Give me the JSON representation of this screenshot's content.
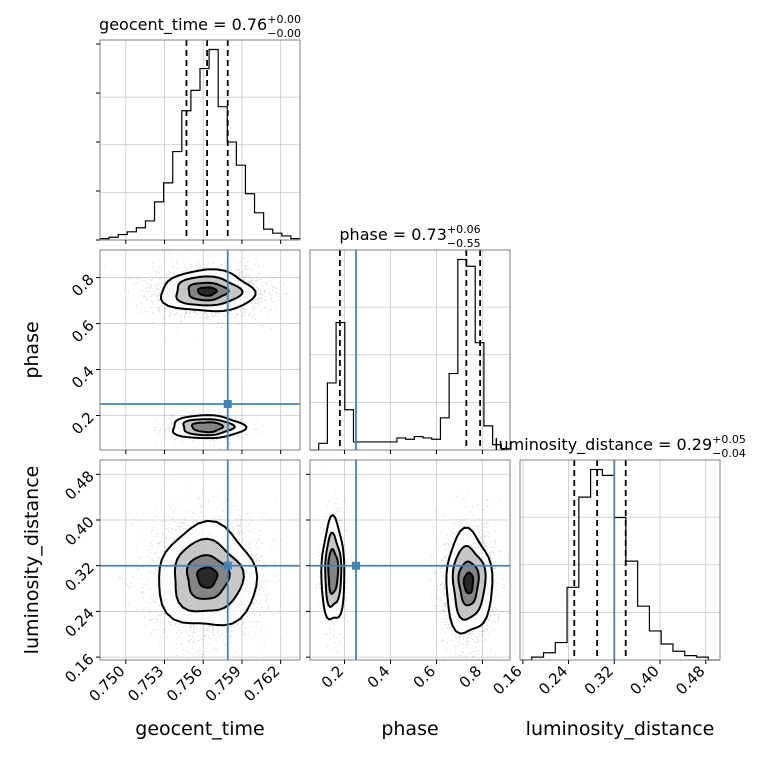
{
  "chart_data": {
    "type": "corner",
    "truth_color": "#4682b4",
    "params": [
      {
        "name": "geocent_time",
        "axis_label": "geocent_time",
        "range": [
          0.748,
          0.7635
        ],
        "ticks": [
          0.75,
          0.753,
          0.756,
          0.759,
          0.762
        ],
        "tick_labels": [
          "0.750",
          "0.753",
          "0.756",
          "0.759",
          "0.762"
        ],
        "title_main": "geocent_time = 0.76",
        "title_sup": "+0.00",
        "title_sub": "−0.00",
        "quantiles": [
          0.7547,
          0.7563,
          0.7579
        ],
        "truth": null,
        "hist": [
          1,
          2,
          4,
          6,
          9,
          14,
          28,
          42,
          65,
          95,
          110,
          126,
          140,
          98,
          72,
          55,
          34,
          20,
          8,
          5,
          3,
          1
        ]
      },
      {
        "name": "phase",
        "axis_label": "phase",
        "range": [
          0.05,
          0.92
        ],
        "ticks": [
          0.2,
          0.4,
          0.6,
          0.8
        ],
        "tick_labels": [
          "0.2",
          "0.4",
          "0.6",
          "0.8"
        ],
        "title_main": "phase = 0.73",
        "title_sup": "+0.06",
        "title_sub": "−0.55",
        "quantiles": [
          0.18,
          0.73,
          0.79
        ],
        "truth": 0.25,
        "hist": [
          0,
          5,
          50,
          95,
          30,
          6,
          6,
          6,
          6,
          6,
          9,
          8,
          10,
          9,
          8,
          24,
          57,
          142,
          137,
          80,
          18,
          4,
          1
        ]
      },
      {
        "name": "luminosity_distance",
        "axis_label": "luminosity_distance",
        "range": [
          0.155,
          0.505
        ],
        "ticks": [
          0.16,
          0.24,
          0.32,
          0.4,
          0.48
        ],
        "tick_labels": [
          "0.16",
          "0.24",
          "0.32",
          "0.40",
          "0.48"
        ],
        "title_main": "luminosity_distance = 0.29",
        "title_sup": "+0.05",
        "title_sub": "−0.04",
        "quantiles": [
          0.25,
          0.29,
          0.34
        ],
        "truth": 0.32,
        "hist": [
          0,
          2,
          5,
          12,
          50,
          112,
          131,
          127,
          98,
          68,
          37,
          20,
          11,
          6,
          3,
          2,
          0
        ]
      }
    ],
    "panels_2d": [
      {
        "x_param": "geocent_time",
        "y_param": "phase",
        "modes": [
          {
            "cx": 0.7563,
            "cy": 0.74,
            "sx": 0.0018,
            "sy": 0.045,
            "weight": 0.8
          },
          {
            "cx": 0.7563,
            "cy": 0.15,
            "sx": 0.0014,
            "sy": 0.025,
            "weight": 0.2
          }
        ],
        "truth": [
          0.7579,
          0.25
        ]
      },
      {
        "x_param": "geocent_time",
        "y_param": "luminosity_distance",
        "modes": [
          {
            "cx": 0.7563,
            "cy": 0.3,
            "sx": 0.0019,
            "sy": 0.045,
            "weight": 1.0
          }
        ],
        "truth": [
          0.7579,
          0.32
        ]
      },
      {
        "x_param": "phase",
        "y_param": "luminosity_distance",
        "modes": [
          {
            "cx": 0.15,
            "cy": 0.31,
            "sx": 0.025,
            "sy": 0.045,
            "weight": 0.2
          },
          {
            "cx": 0.74,
            "cy": 0.29,
            "sx": 0.05,
            "sy": 0.045,
            "weight": 0.8
          }
        ],
        "truth": [
          0.25,
          0.32
        ]
      }
    ]
  }
}
